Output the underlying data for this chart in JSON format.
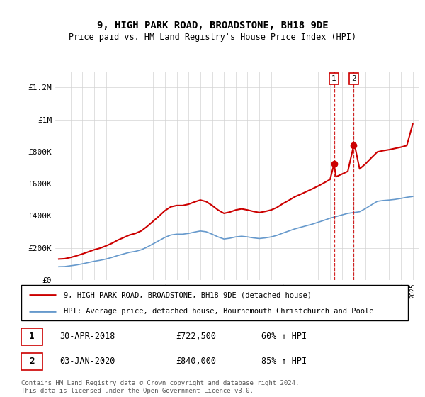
{
  "title": "9, HIGH PARK ROAD, BROADSTONE, BH18 9DE",
  "subtitle": "Price paid vs. HM Land Registry's House Price Index (HPI)",
  "ylabel_ticks": [
    "£0",
    "£200K",
    "£400K",
    "£600K",
    "£800K",
    "£1M",
    "£1.2M"
  ],
  "ytick_values": [
    0,
    200000,
    400000,
    600000,
    800000,
    1000000,
    1200000
  ],
  "ylim": [
    0,
    1300000
  ],
  "xlim_start": 1994.7,
  "xlim_end": 2025.5,
  "red_color": "#cc0000",
  "blue_color": "#6699cc",
  "transaction1": {
    "date": "30-APR-2018",
    "price": 722500,
    "hpi_pct": "60% ↑ HPI",
    "label": "1",
    "x": 2018.33
  },
  "transaction2": {
    "date": "03-JAN-2020",
    "price": 840000,
    "hpi_pct": "85% ↑ HPI",
    "label": "2",
    "x": 2020.0
  },
  "legend_red_label": "9, HIGH PARK ROAD, BROADSTONE, BH18 9DE (detached house)",
  "legend_blue_label": "HPI: Average price, detached house, Bournemouth Christchurch and Poole",
  "footnote": "Contains HM Land Registry data © Crown copyright and database right 2024.\nThis data is licensed under the Open Government Licence v3.0.",
  "table_row1": [
    "1",
    "30-APR-2018",
    "£722,500",
    "60% ↑ HPI"
  ],
  "table_row2": [
    "2",
    "03-JAN-2020",
    "£840,000",
    "85% ↑ HPI"
  ],
  "hpi_years": [
    1995,
    1995.5,
    1996,
    1996.5,
    1997,
    1997.5,
    1998,
    1998.5,
    1999,
    1999.5,
    2000,
    2000.5,
    2001,
    2001.5,
    2002,
    2002.5,
    2003,
    2003.5,
    2004,
    2004.5,
    2005,
    2005.5,
    2006,
    2006.5,
    2007,
    2007.5,
    2008,
    2008.5,
    2009,
    2009.5,
    2010,
    2010.5,
    2011,
    2011.5,
    2012,
    2012.5,
    2013,
    2013.5,
    2014,
    2014.5,
    2015,
    2015.5,
    2016,
    2016.5,
    2017,
    2017.5,
    2018,
    2018.5,
    2019,
    2019.5,
    2020,
    2020.5,
    2021,
    2021.5,
    2022,
    2022.5,
    2023,
    2023.5,
    2024,
    2024.5,
    2025
  ],
  "hpi_values": [
    82000,
    83000,
    88000,
    93000,
    100000,
    108000,
    116000,
    122000,
    130000,
    140000,
    152000,
    162000,
    172000,
    178000,
    188000,
    205000,
    225000,
    245000,
    265000,
    280000,
    285000,
    285000,
    290000,
    298000,
    305000,
    300000,
    285000,
    268000,
    255000,
    260000,
    268000,
    272000,
    268000,
    262000,
    258000,
    262000,
    268000,
    278000,
    292000,
    305000,
    318000,
    328000,
    338000,
    348000,
    360000,
    372000,
    385000,
    395000,
    405000,
    415000,
    420000,
    425000,
    445000,
    468000,
    490000,
    495000,
    498000,
    502000,
    508000,
    515000,
    520000
  ],
  "red_years": [
    1995,
    1995.5,
    1996,
    1996.5,
    1997,
    1997.5,
    1998,
    1998.5,
    1999,
    1999.5,
    2000,
    2000.5,
    2001,
    2001.5,
    2002,
    2002.5,
    2003,
    2003.5,
    2004,
    2004.5,
    2005,
    2005.5,
    2006,
    2006.5,
    2007,
    2007.5,
    2008,
    2008.5,
    2009,
    2009.5,
    2010,
    2010.5,
    2011,
    2011.5,
    2012,
    2012.5,
    2013,
    2013.5,
    2014,
    2014.5,
    2015,
    2015.5,
    2016,
    2016.5,
    2017,
    2017.5,
    2018,
    2018.33,
    2018.5,
    2019,
    2019.5,
    2020,
    2020.08,
    2020.5,
    2021,
    2021.5,
    2022,
    2022.5,
    2023,
    2023.5,
    2024,
    2024.5,
    2025
  ],
  "red_values": [
    130000,
    132000,
    140000,
    150000,
    162000,
    175000,
    188000,
    198000,
    212000,
    228000,
    248000,
    264000,
    280000,
    290000,
    306000,
    334000,
    366000,
    398000,
    432000,
    456000,
    464000,
    464000,
    472000,
    486000,
    498000,
    488000,
    464000,
    436000,
    415000,
    423000,
    436000,
    443000,
    436000,
    427000,
    420000,
    427000,
    436000,
    452000,
    476000,
    496000,
    518000,
    534000,
    551000,
    568000,
    586000,
    606000,
    627000,
    722500,
    643000,
    660000,
    677000,
    840000,
    840000,
    692000,
    724000,
    762000,
    798000,
    806000,
    812000,
    820000,
    828000,
    838000,
    972000
  ]
}
